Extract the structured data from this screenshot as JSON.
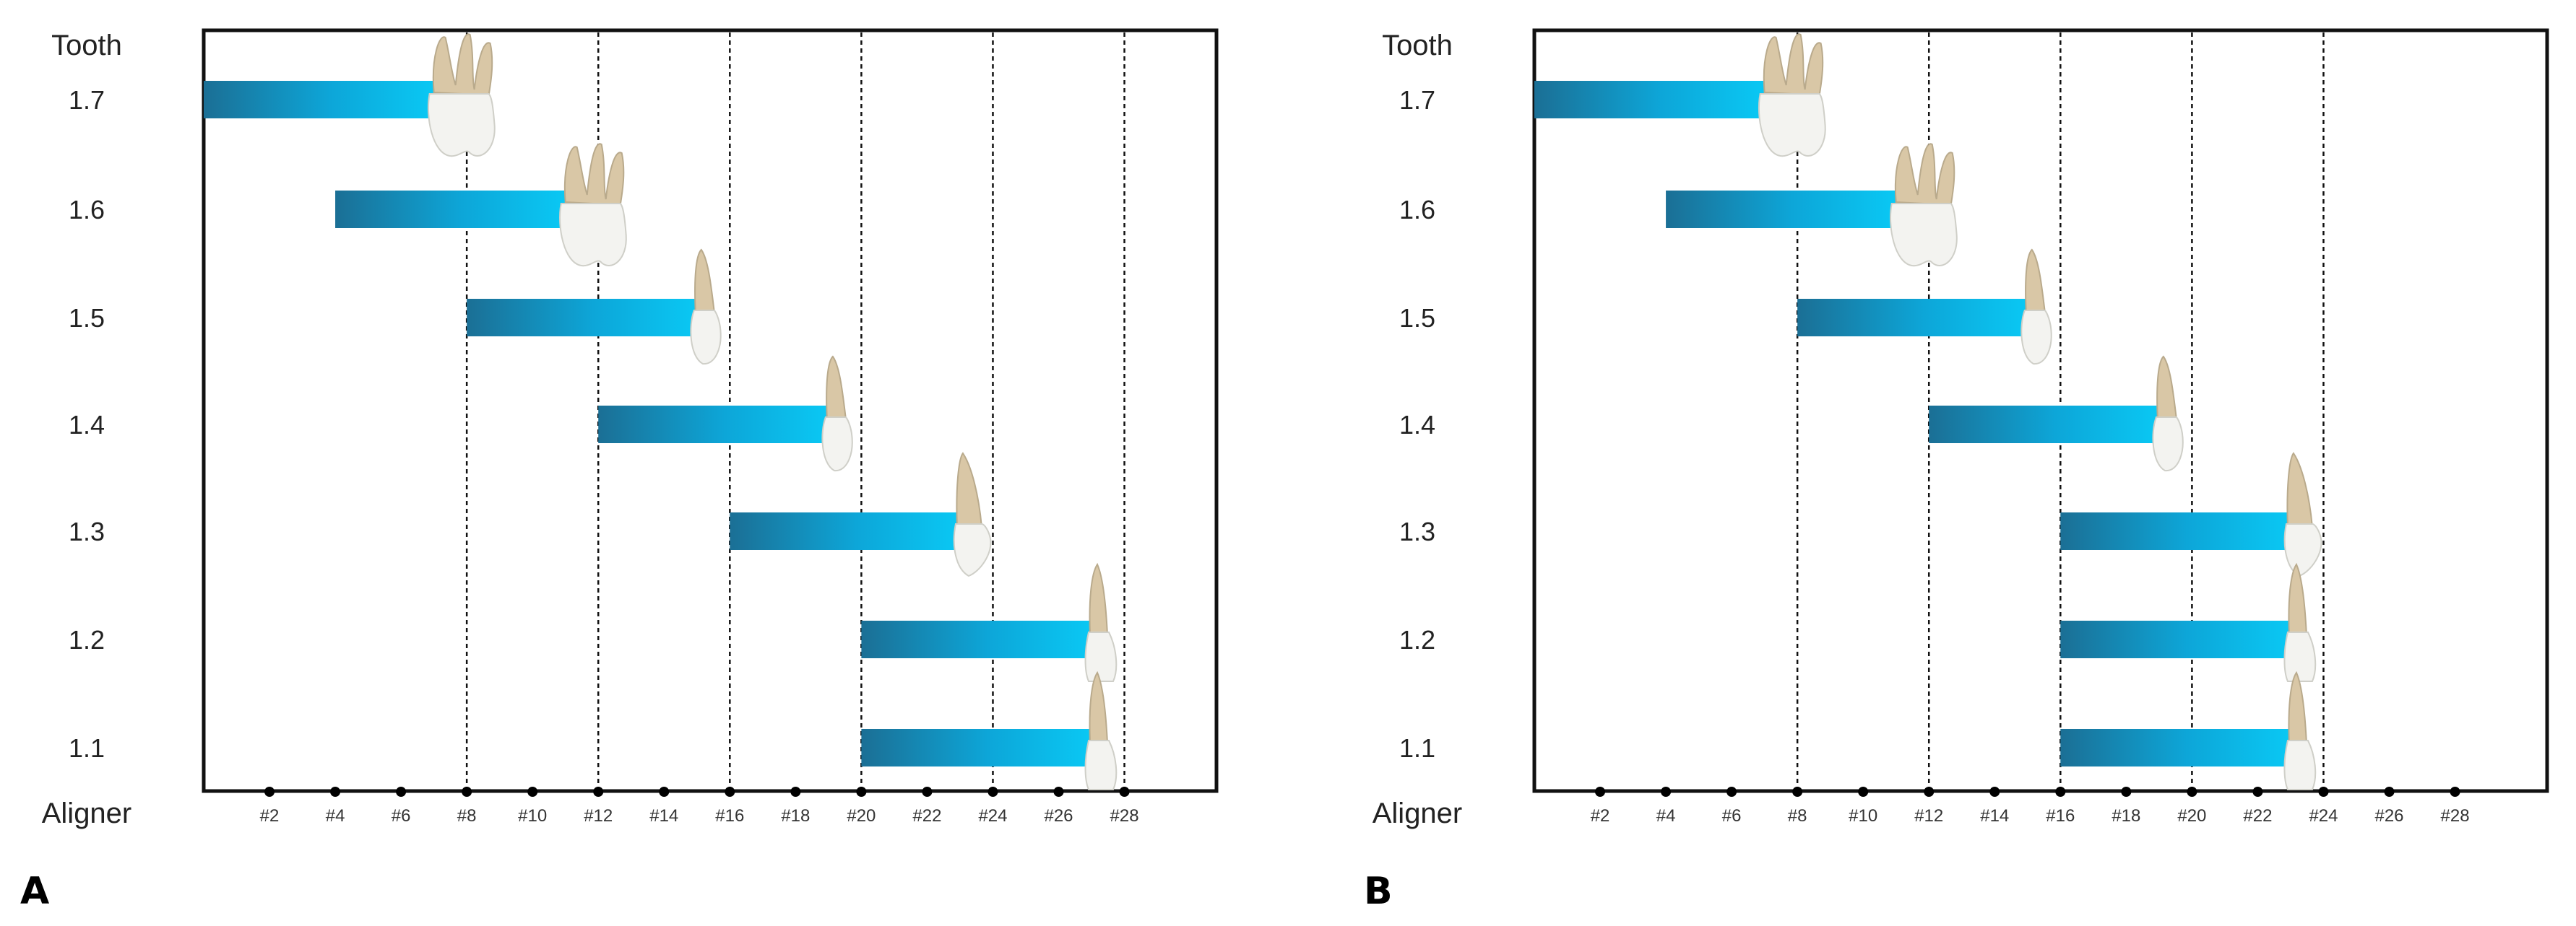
{
  "figure": {
    "panel_labels": [
      "A",
      "B"
    ]
  },
  "colors": {
    "bar_start": "#1b6f95",
    "bar_mid": "#0da6d8",
    "bar_end": "#0ac8f4",
    "frame": "#111111",
    "grid": "#111111",
    "tooth_crown": "#f3f3f0",
    "tooth_root": "#d9c7a6"
  },
  "chart_data": [
    {
      "panel": "A",
      "type": "bar",
      "orientation": "horizontal-range",
      "title": "",
      "y_header": "Tooth",
      "x_header": "Aligner",
      "categories": [
        "1.7",
        "1.6",
        "1.5",
        "1.4",
        "1.3",
        "1.2",
        "1.1"
      ],
      "tooth_types": [
        "molar",
        "molar",
        "premolar",
        "premolar",
        "canine",
        "incisor",
        "incisor"
      ],
      "ranges": [
        [
          0,
          7
        ],
        [
          4,
          11
        ],
        [
          8,
          15
        ],
        [
          12,
          19
        ],
        [
          16,
          23
        ],
        [
          20,
          27
        ],
        [
          20,
          27
        ]
      ],
      "x_ticks": [
        2,
        4,
        6,
        8,
        10,
        12,
        14,
        16,
        18,
        20,
        22,
        24,
        26,
        28
      ],
      "x_tick_labels": [
        "#2",
        "#4",
        "#6",
        "#8",
        "#10",
        "#12",
        "#14",
        "#16",
        "#18",
        "#20",
        "#22",
        "#24",
        "#26",
        "#28"
      ],
      "vertical_guides": [
        8,
        12,
        16,
        20,
        24,
        28
      ],
      "xlim": [
        0,
        30.8
      ]
    },
    {
      "panel": "B",
      "type": "bar",
      "orientation": "horizontal-range",
      "title": "",
      "y_header": "Tooth",
      "x_header": "Aligner",
      "categories": [
        "1.7",
        "1.6",
        "1.5",
        "1.4",
        "1.3",
        "1.2",
        "1.1"
      ],
      "tooth_types": [
        "molar",
        "molar",
        "premolar",
        "premolar",
        "canine",
        "incisor",
        "incisor"
      ],
      "ranges": [
        [
          0,
          7
        ],
        [
          4,
          11
        ],
        [
          8,
          15
        ],
        [
          12,
          19
        ],
        [
          16,
          23
        ],
        [
          16,
          23
        ],
        [
          16,
          23
        ]
      ],
      "x_ticks": [
        2,
        4,
        6,
        8,
        10,
        12,
        14,
        16,
        18,
        20,
        22,
        24,
        26,
        28
      ],
      "x_tick_labels": [
        "#2",
        "#4",
        "#6",
        "#8",
        "#10",
        "#12",
        "#14",
        "#16",
        "#18",
        "#20",
        "#22",
        "#24",
        "#26",
        "#28"
      ],
      "vertical_guides": [
        8,
        12,
        16,
        20,
        24
      ],
      "xlim": [
        0,
        30.8
      ]
    }
  ]
}
